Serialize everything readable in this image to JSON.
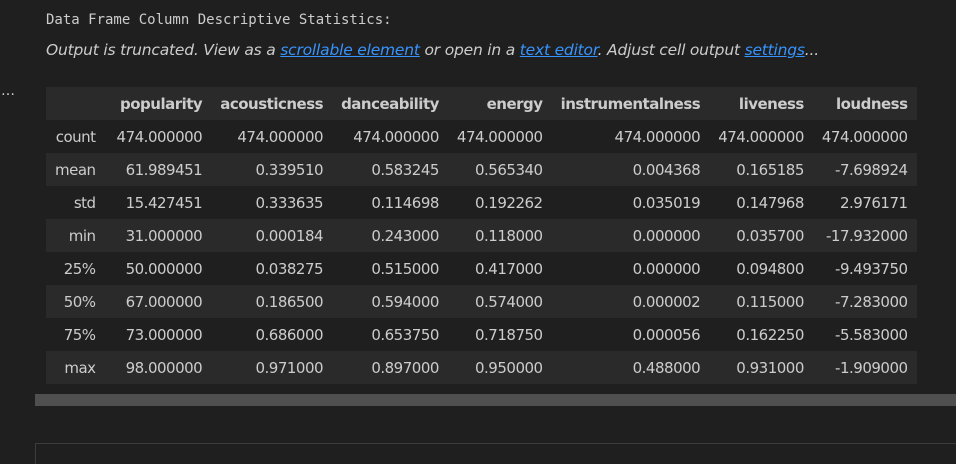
{
  "output": {
    "stream_text": "Data Frame Column Descriptive Statistics:",
    "truncated": {
      "prefix": "Output is truncated. View as a ",
      "link_scrollable": "scrollable element",
      "middle": " or open in a ",
      "link_editor": "text editor",
      "after_editor": ". Adjust cell output ",
      "link_settings": "settings",
      "suffix": "..."
    },
    "more_actions": "…"
  },
  "table": {
    "columns": [
      "popularity",
      "acousticness",
      "danceability",
      "energy",
      "instrumentalness",
      "liveness",
      "loudness"
    ],
    "rows": [
      {
        "index": "count",
        "values": [
          "474.000000",
          "474.000000",
          "474.000000",
          "474.000000",
          "474.000000",
          "474.000000",
          "474.000000"
        ]
      },
      {
        "index": "mean",
        "values": [
          "61.989451",
          "0.339510",
          "0.583245",
          "0.565340",
          "0.004368",
          "0.165185",
          "-7.698924"
        ]
      },
      {
        "index": "std",
        "values": [
          "15.427451",
          "0.333635",
          "0.114698",
          "0.192262",
          "0.035019",
          "0.147968",
          "2.976171"
        ]
      },
      {
        "index": "min",
        "values": [
          "31.000000",
          "0.000184",
          "0.243000",
          "0.118000",
          "0.000000",
          "0.035700",
          "-17.932000"
        ]
      },
      {
        "index": "25%",
        "values": [
          "50.000000",
          "0.038275",
          "0.515000",
          "0.417000",
          "0.000000",
          "0.094800",
          "-9.493750"
        ]
      },
      {
        "index": "50%",
        "values": [
          "67.000000",
          "0.186500",
          "0.594000",
          "0.574000",
          "0.000002",
          "0.115000",
          "-7.283000"
        ]
      },
      {
        "index": "75%",
        "values": [
          "73.000000",
          "0.686000",
          "0.653750",
          "0.718750",
          "0.000056",
          "0.162250",
          "-5.583000"
        ]
      },
      {
        "index": "max",
        "values": [
          "98.000000",
          "0.971000",
          "0.897000",
          "0.950000",
          "0.488000",
          "0.931000",
          "-1.909000"
        ]
      }
    ]
  },
  "colors": {
    "background": "#1f1f1f",
    "header_row": "#2a2a2a",
    "link": "#3794ff",
    "text": "#cccccc"
  }
}
